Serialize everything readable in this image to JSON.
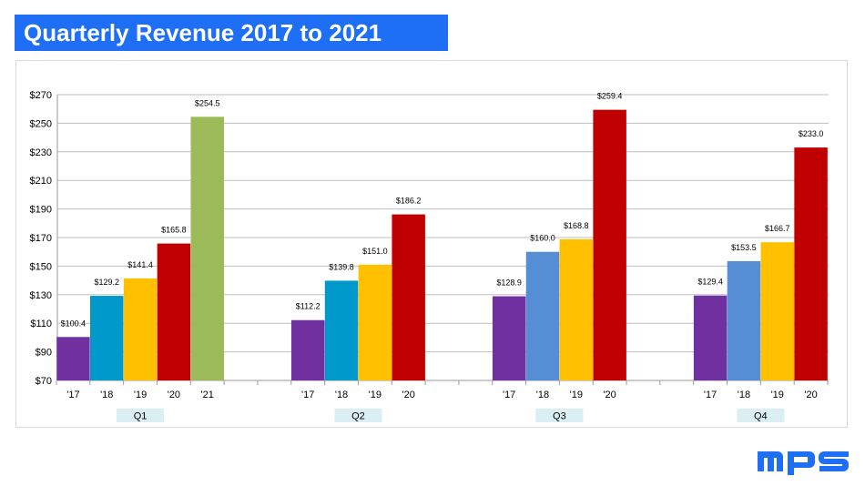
{
  "title": "Quarterly Revenue 2017 to 2021",
  "logo_text": "MPS",
  "chart_data": {
    "type": "bar",
    "ylim": [
      70,
      270
    ],
    "yticks": [
      70,
      90,
      110,
      130,
      150,
      170,
      190,
      210,
      230,
      250,
      270
    ],
    "ytick_labels": [
      "$70",
      "$90",
      "$110",
      "$130",
      "$150",
      "$170",
      "$190",
      "$210",
      "$230",
      "$250",
      "$270"
    ],
    "grid": true,
    "groups": [
      {
        "label": "Q1",
        "bars": [
          {
            "x": "'17",
            "value": 100.4,
            "label": "$100.4",
            "color": "#7030a0"
          },
          {
            "x": "'18",
            "value": 129.2,
            "label": "$129.2",
            "color": "#0099cc"
          },
          {
            "x": "'19",
            "value": 141.4,
            "label": "$141.4",
            "color": "#ffc000"
          },
          {
            "x": "'20",
            "value": 165.8,
            "label": "$165.8",
            "color": "#c00000"
          },
          {
            "x": "'21",
            "value": 254.5,
            "label": "$254.5",
            "color": "#9bbb59"
          }
        ]
      },
      {
        "label": "Q2",
        "bars": [
          {
            "x": "'17",
            "value": 112.2,
            "label": "$112.2",
            "color": "#7030a0"
          },
          {
            "x": "'18",
            "value": 139.8,
            "label": "$139.8",
            "color": "#0099cc"
          },
          {
            "x": "'19",
            "value": 151.0,
            "label": "$151.0",
            "color": "#ffc000"
          },
          {
            "x": "'20",
            "value": 186.2,
            "label": "$186.2",
            "color": "#c00000"
          }
        ]
      },
      {
        "label": "Q3",
        "bars": [
          {
            "x": "'17",
            "value": 128.9,
            "label": "$128.9",
            "color": "#7030a0"
          },
          {
            "x": "'18",
            "value": 160.0,
            "label": "$160.0",
            "color": "#558ed5"
          },
          {
            "x": "'19",
            "value": 168.8,
            "label": "$168.8",
            "color": "#ffc000"
          },
          {
            "x": "'20",
            "value": 259.4,
            "label": "$259.4",
            "color": "#c00000"
          }
        ]
      },
      {
        "label": "Q4",
        "bars": [
          {
            "x": "'17",
            "value": 129.4,
            "label": "$129.4",
            "color": "#7030a0"
          },
          {
            "x": "'18",
            "value": 153.5,
            "label": "$153.5",
            "color": "#558ed5"
          },
          {
            "x": "'19",
            "value": 166.7,
            "label": "$166.7",
            "color": "#ffc000"
          },
          {
            "x": "'20",
            "value": 233.0,
            "label": "$233.0",
            "color": "#c00000"
          }
        ]
      }
    ]
  },
  "colors": {
    "title_background": "#1e6ff5",
    "title_text": "#ffffff",
    "group_label_background": "#daeef3",
    "gridline": "#bfbfbf",
    "logo": "#1e6ff5"
  }
}
